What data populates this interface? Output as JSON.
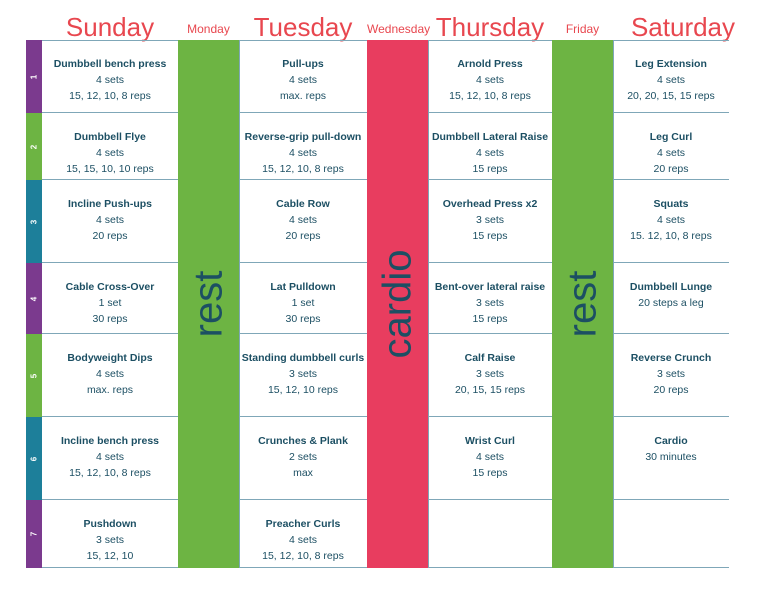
{
  "days": {
    "sunday": "Sunday",
    "monday": "Monday",
    "tuesday": "Tuesday",
    "wednesday": "Wednesday",
    "thursday": "Thursday",
    "friday": "Friday",
    "saturday": "Saturday"
  },
  "rows": [
    "1",
    "2",
    "3",
    "4",
    "5",
    "6",
    "7"
  ],
  "row_colors": [
    "#7b3a8e",
    "#6db443",
    "#1d7f9a",
    "#7b3a8e",
    "#6db443",
    "#1d7f9a",
    "#7b3a8e"
  ],
  "bands": {
    "monday": {
      "label": "rest",
      "color": "#6db443"
    },
    "wednesday": {
      "label": "cardio",
      "color": "#e83d5f"
    },
    "friday": {
      "label": "rest",
      "color": "#6db443"
    }
  },
  "sunday": [
    {
      "name": "Dumbbell bench press",
      "sets": "4 sets",
      "reps": "15, 12, 10, 8 reps"
    },
    {
      "name": "Dumbbell Flye",
      "sets": "4 sets",
      "reps": "15, 15, 10, 10 reps"
    },
    {
      "name": "Incline Push-ups",
      "sets": "4 sets",
      "reps": "20 reps"
    },
    {
      "name": "Cable Cross-Over",
      "sets": "1 set",
      "reps": "30 reps"
    },
    {
      "name": "Bodyweight Dips",
      "sets": "4 sets",
      "reps": "max. reps"
    },
    {
      "name": "Incline bench press",
      "sets": "4 sets",
      "reps": "15, 12, 10, 8 reps"
    },
    {
      "name": "Pushdown",
      "sets": "3 sets",
      "reps": "15, 12, 10"
    }
  ],
  "tuesday": [
    {
      "name": "Pull-ups",
      "sets": "4 sets",
      "reps": "max. reps"
    },
    {
      "name": "Reverse-grip pull-down",
      "sets": "4 sets",
      "reps": "15, 12, 10, 8 reps"
    },
    {
      "name": "Cable Row",
      "sets": "4 sets",
      "reps": "20 reps"
    },
    {
      "name": "Lat Pulldown",
      "sets": "1 set",
      "reps": "30 reps"
    },
    {
      "name": "Standing dumbbell curls",
      "sets": "3 sets",
      "reps": "15, 12, 10 reps"
    },
    {
      "name": "Crunches & Plank",
      "sets": "2 sets",
      "reps": "max"
    },
    {
      "name": "Preacher Curls",
      "sets": "4 sets",
      "reps": "15, 12, 10, 8 reps"
    }
  ],
  "thursday": [
    {
      "name": "Arnold Press",
      "sets": "4 sets",
      "reps": "15, 12, 10, 8 reps"
    },
    {
      "name": "Dumbbell Lateral Raise",
      "sets": "4 sets",
      "reps": "15 reps"
    },
    {
      "name": "Overhead Press x2",
      "sets": "3 sets",
      "reps": "15 reps"
    },
    {
      "name": "Bent-over lateral raise",
      "sets": "3 sets",
      "reps": "15 reps"
    },
    {
      "name": "Calf Raise",
      "sets": "3 sets",
      "reps": "20, 15, 15 reps"
    },
    {
      "name": "Wrist Curl",
      "sets": "4 sets",
      "reps": "15 reps"
    },
    {
      "name": "",
      "sets": "",
      "reps": ""
    }
  ],
  "saturday": [
    {
      "name": "Leg Extension",
      "sets": "4 sets",
      "reps": "20, 20, 15, 15 reps"
    },
    {
      "name": "Leg Curl",
      "sets": "4 sets",
      "reps": "20 reps"
    },
    {
      "name": "Squats",
      "sets": "4 sets",
      "reps": "15. 12, 10, 8 reps"
    },
    {
      "name": "Dumbbell Lunge",
      "sets": "20 steps a leg",
      "reps": ""
    },
    {
      "name": "Reverse Crunch",
      "sets": "3 sets",
      "reps": "20 reps"
    },
    {
      "name": "Cardio",
      "sets": "30 minutes",
      "reps": ""
    },
    {
      "name": "",
      "sets": "",
      "reps": ""
    }
  ]
}
